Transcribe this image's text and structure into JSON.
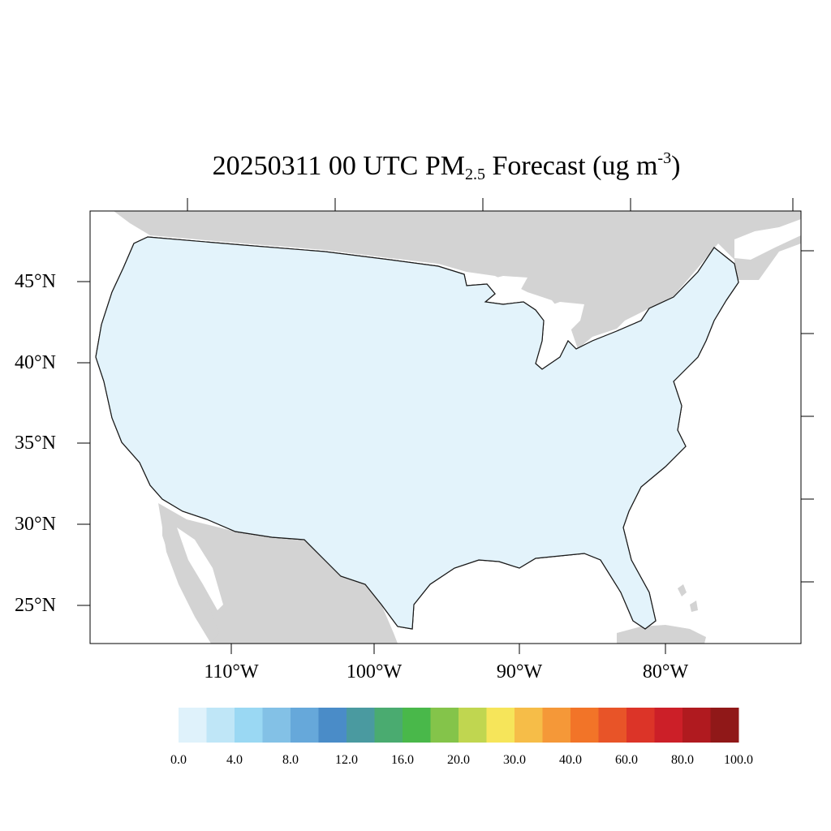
{
  "title": {
    "prefix": "20250311 00 UTC PM",
    "subscript": "2.5",
    "middle": " Forecast (ug m",
    "superscript": "-3",
    "suffix": ")"
  },
  "axes": {
    "lat_labels": [
      "45°N",
      "40°N",
      "35°N",
      "30°N",
      "25°N"
    ],
    "lon_labels": [
      "110°W",
      "100°W",
      "90°W",
      "80°W"
    ]
  },
  "colorbar": {
    "colors": [
      "#dff2fb",
      "#bfe6f7",
      "#9ad8f3",
      "#83c1e6",
      "#66a8da",
      "#4a8cc8",
      "#4a9aa0",
      "#4aab70",
      "#49b84a",
      "#84c44a",
      "#c0d650",
      "#f6e55a",
      "#f6bd48",
      "#f59838",
      "#f27428",
      "#e85428",
      "#dc3428",
      "#cc1f28",
      "#b01a1f",
      "#901818"
    ],
    "labels": [
      "0.0",
      "4.0",
      "8.0",
      "12.0",
      "16.0",
      "20.0",
      "30.0",
      "40.0",
      "60.0",
      "80.0",
      "100.0"
    ]
  },
  "map": {
    "land_fill": "#e3f3fb",
    "mid_fill": "#9ccfe9",
    "hot_fill": "#4a8cc8",
    "peak_fill": "#f6bd48",
    "green_fill": "#49b84a",
    "outside_fill": "#d3d3d3",
    "water_fill": "#ffffff"
  }
}
